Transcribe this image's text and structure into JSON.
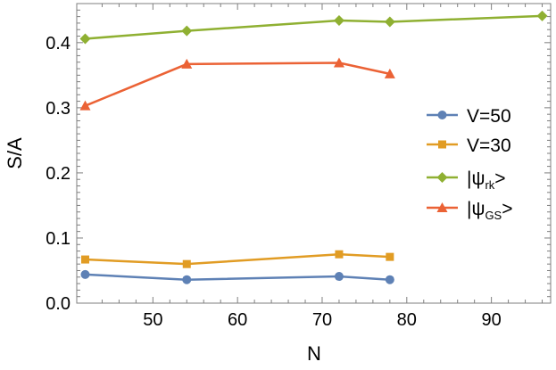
{
  "chart_data": {
    "type": "line",
    "xlabel": "N",
    "ylabel": "S/A",
    "xlim": [
      41,
      97
    ],
    "ylim": [
      0,
      0.46
    ],
    "xticks": [
      50,
      60,
      70,
      80,
      90
    ],
    "yticks": [
      0.0,
      0.1,
      0.2,
      0.3,
      0.4
    ],
    "xtick_labels": [
      "50",
      "60",
      "70",
      "80",
      "90"
    ],
    "ytick_labels": [
      "0.0",
      "0.1",
      "0.2",
      "0.3",
      "0.4"
    ],
    "grid": false,
    "legend_position": "right",
    "series": [
      {
        "name": "V=50",
        "color": "#5e81b5",
        "marker": "circle",
        "x": [
          42,
          54,
          72,
          78
        ],
        "y": [
          0.044,
          0.036,
          0.041,
          0.036
        ]
      },
      {
        "name": "V=30",
        "color": "#e19c24",
        "marker": "square",
        "x": [
          42,
          54,
          72,
          78
        ],
        "y": [
          0.067,
          0.06,
          0.075,
          0.071
        ]
      },
      {
        "name_main": "|ψ",
        "name_sub": "rk",
        "name_end": ">",
        "color": "#8fb032",
        "marker": "diamond",
        "x": [
          42,
          54,
          72,
          78,
          96
        ],
        "y": [
          0.406,
          0.418,
          0.434,
          0.432,
          0.441
        ]
      },
      {
        "name_main": "|ψ",
        "name_sub": "GS",
        "name_end": ">",
        "color": "#eb6235",
        "marker": "triangle",
        "x": [
          42,
          54,
          72,
          78
        ],
        "y": [
          0.303,
          0.367,
          0.369,
          0.352
        ]
      }
    ]
  }
}
